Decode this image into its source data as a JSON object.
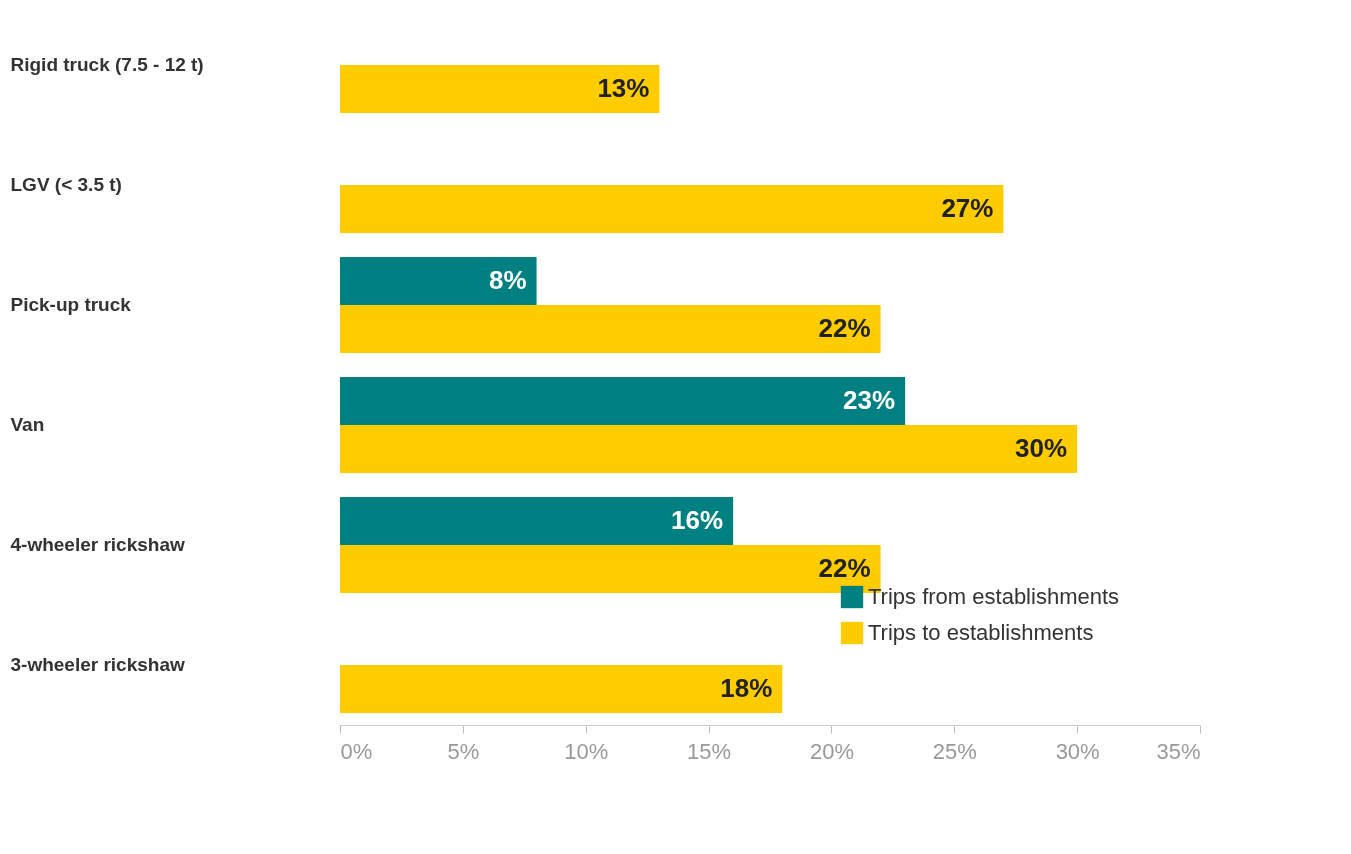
{
  "chart_data": {
    "type": "bar",
    "orientation": "horizontal",
    "categories": [
      "Rigid truck (7.5 - 12 t)",
      "LGV (< 3.5 t)",
      "Pick-up truck",
      "Van",
      "4-wheeler rickshaw",
      "3-wheeler rickshaw"
    ],
    "series": [
      {
        "name": "Trips from establishments",
        "color": "#008080",
        "values": [
          null,
          null,
          8,
          23,
          16,
          null
        ],
        "value_labels": [
          null,
          null,
          "8%",
          "23%",
          "16%",
          null
        ]
      },
      {
        "name": "Trips to establishments",
        "color": "#ffcc00",
        "values": [
          13,
          27,
          22,
          30,
          22,
          18
        ],
        "value_labels": [
          "13%",
          "27%",
          "22%",
          "30%",
          "22%",
          "18%"
        ]
      }
    ],
    "xlim": [
      0,
      35
    ],
    "xticks": [
      {
        "value": 0,
        "label": "0%"
      },
      {
        "value": 5,
        "label": "5%"
      },
      {
        "value": 10,
        "label": "10%"
      },
      {
        "value": 15,
        "label": "15%"
      },
      {
        "value": 20,
        "label": "20%"
      },
      {
        "value": 25,
        "label": "25%"
      },
      {
        "value": 30,
        "label": "30%"
      },
      {
        "value": 35,
        "label": "35%"
      }
    ],
    "grid": false,
    "legend": "bottom right"
  }
}
